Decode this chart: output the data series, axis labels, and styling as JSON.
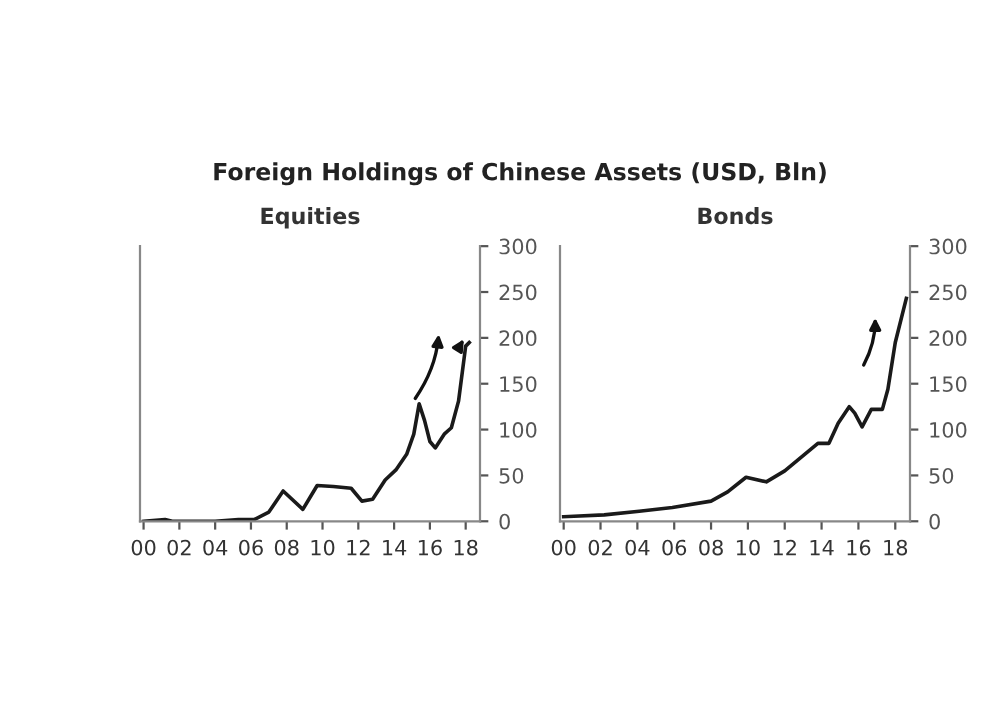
{
  "chart_data": [
    {
      "type": "line",
      "title": "Foreign Holdings of Chinese Assets (USD, Bln)",
      "subtitle": "Equities",
      "x": [
        2000,
        2001.2,
        2001.6,
        2004,
        2005.3,
        2006.2,
        2007,
        2007.8,
        2008.9,
        2009.7,
        2010.6,
        2011.6,
        2012.2,
        2012.8,
        2013.5,
        2014.1,
        2014.7,
        2015.1,
        2015.4,
        2015.7,
        2016,
        2016.3,
        2016.8,
        2017.2,
        2017.6,
        2018,
        2018.2
      ],
      "series": [
        {
          "color": "#1a1a1a",
          "values": [
            0,
            2,
            0,
            0,
            2,
            2,
            10,
            33,
            13,
            39,
            38,
            36,
            22,
            24,
            45,
            56,
            73,
            95,
            128,
            110,
            87,
            80,
            95,
            102,
            131,
            191,
            195
          ]
        }
      ],
      "xlim": [
        1999.8,
        2018.8
      ],
      "xticks": [
        {
          "value": 2000,
          "label": "00"
        },
        {
          "value": 2002,
          "label": "02"
        },
        {
          "value": 2004,
          "label": "04"
        },
        {
          "value": 2006,
          "label": "06"
        },
        {
          "value": 2008,
          "label": "08"
        },
        {
          "value": 2010,
          "label": "10"
        },
        {
          "value": 2012,
          "label": "12"
        },
        {
          "value": 2014,
          "label": "14"
        },
        {
          "value": 2016,
          "label": "16"
        },
        {
          "value": 2018,
          "label": "18"
        }
      ],
      "ylim": [
        0,
        300
      ],
      "yticks": [
        0,
        50,
        100,
        150,
        200,
        250,
        300
      ],
      "grid": false,
      "legend": false,
      "marker": "none",
      "line_style": "solid"
    },
    {
      "type": "line",
      "subtitle": "Bonds",
      "x": [
        2000,
        2002.2,
        2004.1,
        2005.9,
        2008,
        2008.9,
        2009.9,
        2011,
        2012,
        2012.9,
        2013.8,
        2014.4,
        2014.9,
        2015.5,
        2015.8,
        2016.2,
        2016.7,
        2017.3,
        2017.6,
        2018,
        2018.6
      ],
      "series": [
        {
          "color": "#1a1a1a",
          "values": [
            5,
            7,
            11,
            15,
            22,
            32,
            48,
            43,
            55,
            70,
            85,
            85,
            107,
            125,
            118,
            103,
            122,
            122,
            144,
            195,
            243
          ]
        }
      ],
      "xlim": [
        1999.8,
        2018.8
      ],
      "xticks": [
        {
          "value": 2000,
          "label": "00"
        },
        {
          "value": 2002,
          "label": "02"
        },
        {
          "value": 2004,
          "label": "04"
        },
        {
          "value": 2006,
          "label": "06"
        },
        {
          "value": 2008,
          "label": "08"
        },
        {
          "value": 2010,
          "label": "10"
        },
        {
          "value": 2012,
          "label": "12"
        },
        {
          "value": 2014,
          "label": "14"
        },
        {
          "value": 2016,
          "label": "16"
        },
        {
          "value": 2018,
          "label": "18"
        }
      ],
      "ylim": [
        0,
        300
      ],
      "yticks": [
        0,
        50,
        100,
        150,
        200,
        250,
        300
      ],
      "grid": false,
      "legend": false,
      "marker": "none",
      "line_style": "solid"
    }
  ]
}
